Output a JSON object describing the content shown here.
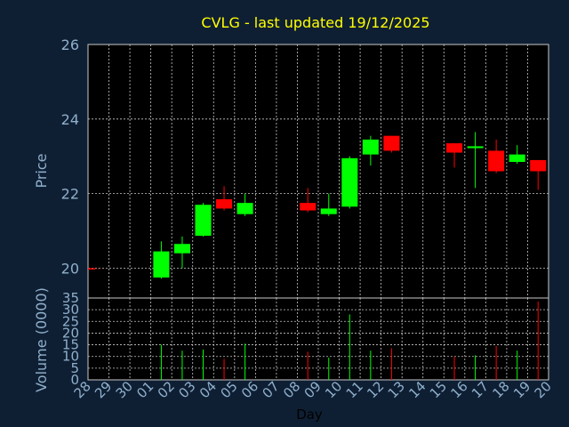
{
  "chart_data": {
    "type": "candlestick",
    "title": "CVLG - last updated 19/12/2025",
    "xlabel": "Day",
    "ylabel": "Price",
    "volume_label": "Volume (0000)",
    "categories": [
      "28",
      "29",
      "30",
      "01",
      "02",
      "03",
      "04",
      "05",
      "06",
      "07",
      "08",
      "09",
      "10",
      "11",
      "12",
      "13",
      "14",
      "15",
      "16",
      "17",
      "18",
      "19",
      "20"
    ],
    "price_ticks": [
      "20",
      "22",
      "24",
      "26"
    ],
    "volume_ticks": [
      "0",
      "5",
      "10",
      "15",
      "20",
      "25",
      "30",
      "35"
    ],
    "price_ylim": [
      19.2,
      26
    ],
    "volume_ylim": [
      0,
      35
    ],
    "grid": true,
    "colors": {
      "up": "#00ff00",
      "down": "#ff0000",
      "title": "#ffff00",
      "axis_text": "#8fb0cc",
      "background": "#0f1f33",
      "plot": "#000000",
      "grid": "#c8c8c8"
    },
    "candles": [
      {
        "day": "28",
        "open": 20.0,
        "high": 20.0,
        "low": 19.97,
        "close": 19.97,
        "volume": 0
      },
      {
        "day": "01",
        "open": 19.75,
        "high": 20.72,
        "low": 19.72,
        "close": 20.45,
        "volume": 15
      },
      {
        "day": "02",
        "open": 20.4,
        "high": 20.85,
        "low": 20.0,
        "close": 20.65,
        "volume": 12.5
      },
      {
        "day": "03",
        "open": 20.87,
        "high": 21.75,
        "low": 20.85,
        "close": 21.7,
        "volume": 13
      },
      {
        "day": "04",
        "open": 21.85,
        "high": 22.2,
        "low": 21.55,
        "close": 21.6,
        "volume": 9
      },
      {
        "day": "05",
        "open": 21.45,
        "high": 22.0,
        "low": 21.4,
        "close": 21.75,
        "volume": 15.5
      },
      {
        "day": "08",
        "open": 21.75,
        "high": 22.15,
        "low": 21.5,
        "close": 21.55,
        "volume": 12
      },
      {
        "day": "09",
        "open": 21.45,
        "high": 22.0,
        "low": 21.4,
        "close": 21.6,
        "volume": 9.5
      },
      {
        "day": "10",
        "open": 21.65,
        "high": 23.0,
        "low": 21.6,
        "close": 22.95,
        "volume": 28
      },
      {
        "day": "11",
        "open": 23.05,
        "high": 23.55,
        "low": 22.75,
        "close": 23.45,
        "volume": 12.5
      },
      {
        "day": "12",
        "open": 23.55,
        "high": 23.55,
        "low": 23.1,
        "close": 23.15,
        "volume": 13.5
      },
      {
        "day": "15",
        "open": 23.35,
        "high": 23.35,
        "low": 22.7,
        "close": 23.1,
        "volume": 10
      },
      {
        "day": "16",
        "open": 23.22,
        "high": 23.65,
        "low": 22.15,
        "close": 23.27,
        "volume": 10.5
      },
      {
        "day": "17",
        "open": 23.15,
        "high": 23.45,
        "low": 22.55,
        "close": 22.6,
        "volume": 14.5
      },
      {
        "day": "18",
        "open": 22.85,
        "high": 23.3,
        "low": 22.8,
        "close": 23.05,
        "volume": 12.5
      },
      {
        "day": "19",
        "open": 22.9,
        "high": 22.9,
        "low": 22.1,
        "close": 22.6,
        "volume": 33.5
      }
    ]
  }
}
